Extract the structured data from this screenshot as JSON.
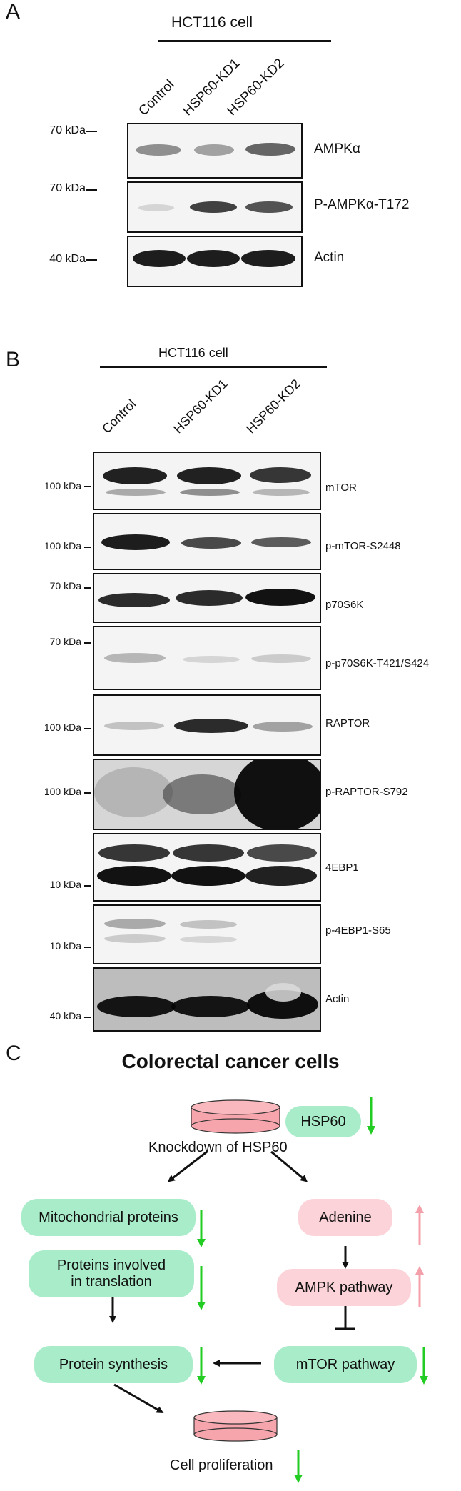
{
  "panel_a": {
    "letter": "A",
    "cell_line": "HCT116 cell",
    "lanes": [
      "Control",
      "HSP60-KD1",
      "HSP60-KD2"
    ],
    "blots": [
      {
        "mw": "70 kDa",
        "label": "AMPKα"
      },
      {
        "mw": "70 kDa",
        "label": "P-AMPKα-T172"
      },
      {
        "mw": "40 kDa",
        "label": "Actin"
      }
    ]
  },
  "panel_b": {
    "letter": "B",
    "cell_line": "HCT116 cell",
    "lanes": [
      "Control",
      "HSP60-KD1",
      "HSP60-KD2"
    ],
    "blots": [
      {
        "mw": "100 kDa",
        "label": "mTOR"
      },
      {
        "mw": "100 kDa",
        "label": "p-mTOR-S2448"
      },
      {
        "mw": "70 kDa",
        "label": "p70S6K"
      },
      {
        "mw": "70 kDa",
        "label": "p-p70S6K-T421/S424"
      },
      {
        "mw": "100 kDa",
        "label": "RAPTOR"
      },
      {
        "mw": "100 kDa",
        "label": "p-RAPTOR-S792"
      },
      {
        "mw": "10 kDa",
        "label": "4EBP1"
      },
      {
        "mw": "10 kDa",
        "label": "p-4EBP1-S65"
      },
      {
        "mw": "40 kDa",
        "label": "Actin"
      }
    ]
  },
  "panel_c": {
    "letter": "C",
    "title": "Colorectal cancer cells",
    "nodes": {
      "hsp60": "HSP60",
      "knockdown": "Knockdown of HSP60",
      "mito": "Mitochondrial proteins",
      "translation_1": "Proteins involved",
      "translation_2": "in translation",
      "protein_synthesis": "Protein synthesis",
      "adenine": "Adenine",
      "ampk": "AMPK pathway",
      "mtor": "mTOR pathway",
      "proliferation": "Cell proliferation"
    },
    "colors": {
      "green_box": "#a8ecc9",
      "pink_box": "#fbd3d8",
      "down_arrow": "#22cc22",
      "up_arrow": "#f4a0aa",
      "cylinder": "#f7a5ac"
    }
  }
}
